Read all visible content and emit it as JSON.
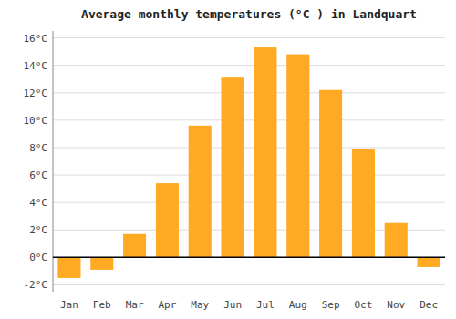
{
  "chart_data": {
    "type": "bar",
    "title": "Average monthly temperatures (°C ) in Landquart",
    "categories": [
      "Jan",
      "Feb",
      "Mar",
      "Apr",
      "May",
      "Jun",
      "Jul",
      "Aug",
      "Sep",
      "Oct",
      "Nov",
      "Dec"
    ],
    "values": [
      -1.5,
      -0.9,
      1.7,
      5.4,
      9.6,
      13.1,
      15.3,
      14.8,
      12.2,
      7.9,
      2.5,
      -0.7
    ],
    "color": "#FFAA22",
    "ylim": [
      -2.5,
      16.5
    ],
    "yticks": [
      {
        "value": -2,
        "label": "-2°C"
      },
      {
        "value": 0,
        "label": "0°C"
      },
      {
        "value": 2,
        "label": "2°C"
      },
      {
        "value": 4,
        "label": "4°C"
      },
      {
        "value": 6,
        "label": "6°C"
      },
      {
        "value": 8,
        "label": "8°C"
      },
      {
        "value": 10,
        "label": "10°C"
      },
      {
        "value": 12,
        "label": "12°C"
      },
      {
        "value": 14,
        "label": "14°C"
      },
      {
        "value": 16,
        "label": "16°C"
      }
    ],
    "grid": true
  }
}
